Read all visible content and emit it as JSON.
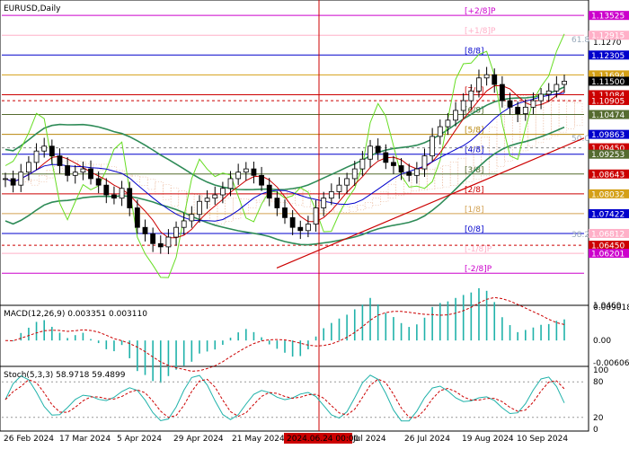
{
  "chart_data": {
    "type": "line",
    "title": "EURUSD,Daily",
    "instrument": "EURUSD",
    "timeframe": "Daily",
    "ylim": [
      1.046,
      1.14
    ],
    "y_ticks": [
      1.127,
      1.046
    ],
    "x_labels": [
      "26 Feb 2024",
      "17 Mar 2024",
      "5 Apr 2024",
      "29 Apr 2024",
      "21 May 2024",
      "2024.06.24 00:00",
      "Jul 2024",
      "26 Jul 2024",
      "19 Aug 2024",
      "10 Sep 2024"
    ],
    "crosshair_date": "2024.06.24 00:00",
    "price_series": {
      "name": "EURUSD close",
      "values": [
        1.085,
        1.083,
        1.087,
        1.09,
        1.0935,
        1.095,
        1.092,
        1.089,
        1.086,
        1.087,
        1.088,
        1.085,
        1.083,
        1.08,
        1.079,
        1.082,
        1.076,
        1.07,
        1.068,
        1.065,
        1.064,
        1.067,
        1.07,
        1.072,
        1.074,
        1.078,
        1.079,
        1.08,
        1.082,
        1.085,
        1.087,
        1.088,
        1.086,
        1.083,
        1.079,
        1.076,
        1.073,
        1.07,
        1.069,
        1.071,
        1.076,
        1.079,
        1.081,
        1.083,
        1.085,
        1.088,
        1.091,
        1.095,
        1.093,
        1.09,
        1.089,
        1.087,
        1.086,
        1.088,
        1.092,
        1.098,
        1.101,
        1.103,
        1.106,
        1.109,
        1.112,
        1.116,
        1.117,
        1.114,
        1.109,
        1.107,
        1.105,
        1.107,
        1.109,
        1.111,
        1.112,
        1.114,
        1.115
      ]
    },
    "murrey_levels": [
      {
        "label": "[+2/8]P",
        "value": 1.13525,
        "color": "#cc00cc"
      },
      {
        "label": "[+1/8]P",
        "value": 1.12915,
        "color": "#ffb0c8"
      },
      {
        "label": "[8/8]",
        "value": 1.12305,
        "color": "#0000cc"
      },
      {
        "label": "[7/8]",
        "value": 1.11084,
        "color": "#cc0000"
      },
      {
        "label": "[6/8]",
        "value": 1.10474,
        "color": "#556b2f"
      },
      {
        "label": "[5/8]",
        "value": 1.09863,
        "color": "#b8860b"
      },
      {
        "label": "[4/8]",
        "value": 1.09253,
        "color": "#0000cc"
      },
      {
        "label": "[3/8]",
        "value": 1.08643,
        "color": "#556b2f"
      },
      {
        "label": "[2/8]",
        "value": 1.08032,
        "color": "#cc0000"
      },
      {
        "label": "[1/8]",
        "value": 1.07422,
        "color": "#d2a050"
      },
      {
        "label": "[0/8]",
        "value": 1.06812,
        "color": "#0000cc"
      },
      {
        "label": "[-1/8]P",
        "value": 1.06201,
        "color": "#ffb0c8"
      },
      {
        "label": "[-2/8]P",
        "value": 1.0559,
        "color": "#cc00cc"
      }
    ],
    "fib_labels": [
      {
        "label": "61.8",
        "value": 1.1265
      },
      {
        "label": "50.0",
        "value": 1.096
      },
      {
        "label": "38.2",
        "value": 1.0665
      }
    ],
    "price_tags": [
      {
        "text": "1.13525",
        "value": 1.13525,
        "bg": "#cc00cc",
        "fg": "#ffffff"
      },
      {
        "text": "1.12915",
        "value": 1.12915,
        "bg": "#ffb0c8",
        "fg": "#ffffff"
      },
      {
        "text": "1.12305",
        "value": 1.12305,
        "bg": "#0000cc",
        "fg": "#ffffff"
      },
      {
        "text": "1.11694",
        "value": 1.11694,
        "bg": "#d4a017",
        "fg": "#ffffff"
      },
      {
        "text": "1.11500",
        "value": 1.115,
        "bg": "#000000",
        "fg": "#ffffff"
      },
      {
        "text": "1.11084",
        "value": 1.11084,
        "bg": "#cc0000",
        "fg": "#ffffff"
      },
      {
        "text": "1.10905",
        "value": 1.10905,
        "bg": "#cc0000",
        "fg": "#ffffff"
      },
      {
        "text": "1.10474",
        "value": 1.10474,
        "bg": "#556b2f",
        "fg": "#ffffff"
      },
      {
        "text": "1.09863",
        "value": 1.09863,
        "bg": "#0000cc",
        "fg": "#ffffff"
      },
      {
        "text": "1.09450",
        "value": 1.0945,
        "bg": "#cc0000",
        "fg": "#ffffff"
      },
      {
        "text": "1.09253",
        "value": 1.09253,
        "bg": "#556b2f",
        "fg": "#ffffff"
      },
      {
        "text": "1.08643",
        "value": 1.08643,
        "bg": "#cc0000",
        "fg": "#ffffff"
      },
      {
        "text": "1.08032",
        "value": 1.08032,
        "bg": "#d4a017",
        "fg": "#ffffff"
      },
      {
        "text": "1.07422",
        "value": 1.07422,
        "bg": "#0000cc",
        "fg": "#ffffff"
      },
      {
        "text": "1.06812",
        "value": 1.06812,
        "bg": "#ffb0c8",
        "fg": "#ffffff"
      },
      {
        "text": "1.06450",
        "value": 1.0645,
        "bg": "#cc0000",
        "fg": "#ffffff"
      },
      {
        "text": "1.06201",
        "value": 1.06201,
        "bg": "#cc00cc",
        "fg": "#ffffff"
      }
    ],
    "macd": {
      "label": "MACD(12,26,9) 0.003351 0.003110",
      "ylim": [
        -0.007,
        0.0095
      ],
      "y_ticks": [
        "0.009018",
        "0.00",
        "-0.006067"
      ],
      "y_tick_values": [
        0.009018,
        0.0,
        -0.006067
      ]
    },
    "stoch": {
      "label": "Stoch(5,3,3) 58.9718 59.4899",
      "ylim": [
        0,
        100
      ],
      "y_ticks": [
        "100",
        "80",
        "20",
        "0"
      ],
      "y_tick_values": [
        100,
        80,
        20,
        0
      ]
    },
    "colors": {
      "up_candle": "#000000",
      "down_candle": "#000000",
      "bollinger": "#2e8b57",
      "ma_fast": "#cc0000",
      "ma_slow": "#0000cc",
      "momentum": "#66dd22",
      "trendline": "#cc0000",
      "crosshair": "#cc0000",
      "macd_hist": "#20b2aa",
      "macd_signal": "#cc0000",
      "stoch_main": "#20b2aa",
      "stoch_signal": "#cc0000"
    }
  }
}
